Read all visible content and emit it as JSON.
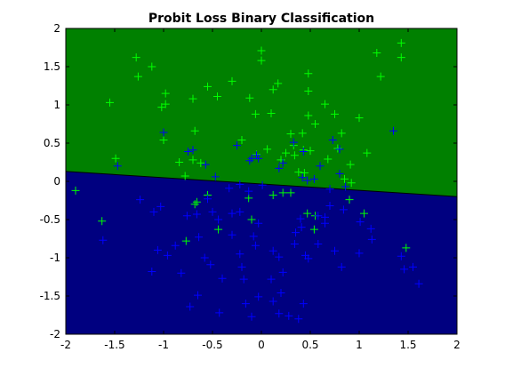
{
  "chart_data": {
    "type": "scatter",
    "title": "Probit Loss Binary Classification",
    "xlabel": "",
    "ylabel": "",
    "xlim": [
      -2,
      2
    ],
    "ylim": [
      -2,
      2
    ],
    "xticks": [
      -2,
      -1.5,
      -1,
      -0.5,
      0,
      0.5,
      1,
      1.5,
      2
    ],
    "yticks": [
      -2,
      -1.5,
      -1,
      -0.5,
      0,
      0.5,
      1,
      1.5,
      2
    ],
    "grid": false,
    "legend": "none",
    "decision_boundary": {
      "x": [
        -2,
        2
      ],
      "y": [
        0.13,
        -0.2
      ]
    },
    "regions": [
      {
        "side": "above",
        "color": "#008000"
      },
      {
        "side": "below",
        "color": "#000080"
      }
    ],
    "series": [
      {
        "marker": "plus",
        "color": "#00ff00",
        "points": [
          [
            1.43,
            1.81
          ],
          [
            0.0,
            1.71
          ],
          [
            -1.28,
            1.62
          ],
          [
            1.18,
            1.68
          ],
          [
            0.0,
            1.58
          ],
          [
            -1.12,
            1.5
          ],
          [
            1.43,
            1.62
          ],
          [
            -1.26,
            1.37
          ],
          [
            0.48,
            1.41
          ],
          [
            1.22,
            1.37
          ],
          [
            -0.3,
            1.31
          ],
          [
            0.17,
            1.28
          ],
          [
            -0.55,
            1.24
          ],
          [
            0.12,
            1.2
          ],
          [
            0.48,
            1.18
          ],
          [
            -0.98,
            1.15
          ],
          [
            -0.45,
            1.11
          ],
          [
            -1.55,
            1.03
          ],
          [
            -0.98,
            1.01
          ],
          [
            -0.7,
            1.08
          ],
          [
            0.65,
            1.01
          ],
          [
            -0.12,
            1.09
          ],
          [
            -1.02,
            0.97
          ],
          [
            0.1,
            0.89
          ],
          [
            -0.06,
            0.88
          ],
          [
            0.48,
            0.86
          ],
          [
            0.75,
            0.88
          ],
          [
            1.0,
            0.83
          ],
          [
            0.55,
            0.75
          ],
          [
            0.3,
            0.62
          ],
          [
            -0.68,
            0.66
          ],
          [
            0.42,
            0.63
          ],
          [
            0.82,
            0.63
          ],
          [
            -1.0,
            0.54
          ],
          [
            -0.2,
            0.54
          ],
          [
            0.33,
            0.47
          ],
          [
            0.78,
            0.43
          ],
          [
            0.43,
            0.41
          ],
          [
            0.06,
            0.42
          ],
          [
            0.5,
            0.4
          ],
          [
            -0.05,
            0.35
          ],
          [
            0.25,
            0.37
          ],
          [
            0.34,
            0.34
          ],
          [
            1.08,
            0.37
          ],
          [
            0.68,
            0.29
          ],
          [
            0.2,
            0.28
          ],
          [
            -0.84,
            0.25
          ],
          [
            -0.7,
            0.28
          ],
          [
            -0.62,
            0.24
          ],
          [
            0.91,
            0.22
          ],
          [
            0.38,
            0.12
          ],
          [
            -0.78,
            0.07
          ],
          [
            -1.49,
            0.3
          ],
          [
            0.44,
            0.11
          ],
          [
            0.85,
            0.03
          ],
          [
            0.92,
            -0.02
          ],
          [
            0.22,
            -0.15
          ],
          [
            0.12,
            -0.18
          ],
          [
            0.3,
            -0.15
          ],
          [
            -0.55,
            -0.18
          ],
          [
            -0.66,
            -0.27
          ],
          [
            -0.13,
            -0.22
          ],
          [
            -0.1,
            -0.5
          ],
          [
            0.9,
            -0.24
          ],
          [
            -1.9,
            -0.12
          ],
          [
            -0.68,
            -0.3
          ],
          [
            0.47,
            -0.42
          ],
          [
            0.55,
            -0.45
          ],
          [
            -1.63,
            -0.52
          ],
          [
            1.05,
            -0.42
          ],
          [
            0.54,
            -0.63
          ],
          [
            -0.44,
            -0.63
          ],
          [
            -0.77,
            -0.78
          ],
          [
            1.48,
            -0.87
          ]
        ]
      },
      {
        "marker": "plus",
        "color": "#0000ff",
        "points": [
          [
            1.35,
            0.66
          ],
          [
            -1.0,
            0.64
          ],
          [
            0.73,
            0.54
          ],
          [
            0.33,
            0.51
          ],
          [
            -0.25,
            0.47
          ],
          [
            -0.7,
            0.41
          ],
          [
            0.8,
            0.42
          ],
          [
            -0.75,
            0.39
          ],
          [
            0.43,
            0.39
          ],
          [
            -0.05,
            0.34
          ],
          [
            -0.1,
            0.3
          ],
          [
            -0.12,
            0.27
          ],
          [
            -0.03,
            0.3
          ],
          [
            0.6,
            0.2
          ],
          [
            0.22,
            0.24
          ],
          [
            0.18,
            0.17
          ],
          [
            -1.47,
            0.2
          ],
          [
            -0.57,
            0.22
          ],
          [
            0.42,
            0.05
          ],
          [
            0.47,
            0.01
          ],
          [
            0.8,
            0.1
          ],
          [
            0.54,
            0.03
          ],
          [
            -0.47,
            0.06
          ],
          [
            0.86,
            -0.07
          ],
          [
            -0.13,
            -0.13
          ],
          [
            0.7,
            -0.1
          ],
          [
            -0.33,
            -0.09
          ],
          [
            -0.22,
            -0.04
          ],
          [
            0.01,
            -0.05
          ],
          [
            -0.55,
            -0.23
          ],
          [
            -0.22,
            -0.4
          ],
          [
            -0.3,
            -0.42
          ],
          [
            -1.03,
            -0.33
          ],
          [
            -0.5,
            -0.4
          ],
          [
            -0.66,
            -0.43
          ],
          [
            -0.76,
            -0.45
          ],
          [
            -0.44,
            -0.5
          ],
          [
            0.4,
            -0.49
          ],
          [
            0.65,
            -0.47
          ],
          [
            0.7,
            -0.32
          ],
          [
            -1.24,
            -0.24
          ],
          [
            0.84,
            -0.37
          ],
          [
            -1.1,
            -0.4
          ],
          [
            1.01,
            -0.53
          ],
          [
            0.65,
            -0.55
          ],
          [
            -0.03,
            -0.55
          ],
          [
            0.58,
            -0.45
          ],
          [
            -0.3,
            -0.7
          ],
          [
            -0.08,
            -0.72
          ],
          [
            -0.06,
            -0.84
          ],
          [
            0.58,
            -0.82
          ],
          [
            -0.64,
            -0.73
          ],
          [
            0.34,
            -0.82
          ],
          [
            -0.88,
            -0.84
          ],
          [
            0.41,
            -0.6
          ],
          [
            0.35,
            -0.67
          ],
          [
            -1.06,
            -0.9
          ],
          [
            -0.22,
            -0.95
          ],
          [
            0.45,
            -0.97
          ],
          [
            0.12,
            -0.91
          ],
          [
            0.75,
            -0.91
          ],
          [
            1.0,
            -0.94
          ],
          [
            1.13,
            -0.76
          ],
          [
            -0.96,
            -0.97
          ],
          [
            0.18,
            -0.99
          ],
          [
            1.12,
            -0.62
          ],
          [
            1.43,
            -0.98
          ],
          [
            -1.62,
            -0.77
          ],
          [
            -0.58,
            -1.0
          ],
          [
            0.48,
            -1.01
          ],
          [
            0.82,
            -1.12
          ],
          [
            1.46,
            -1.15
          ],
          [
            -1.12,
            -1.18
          ],
          [
            -0.2,
            -1.12
          ],
          [
            -0.52,
            -1.09
          ],
          [
            1.55,
            -1.12
          ],
          [
            -0.82,
            -1.2
          ],
          [
            0.22,
            -1.19
          ],
          [
            -0.4,
            -1.27
          ],
          [
            1.61,
            -1.34
          ],
          [
            -0.18,
            -1.28
          ],
          [
            0.1,
            -1.28
          ],
          [
            -0.65,
            -1.49
          ],
          [
            0.2,
            -1.46
          ],
          [
            -0.03,
            -1.51
          ],
          [
            0.12,
            -1.57
          ],
          [
            -0.73,
            -1.64
          ],
          [
            -0.16,
            -1.6
          ],
          [
            0.28,
            -1.76
          ],
          [
            0.38,
            -1.8
          ],
          [
            0.18,
            -1.73
          ],
          [
            -0.43,
            -1.72
          ],
          [
            0.43,
            -1.6
          ],
          [
            -0.1,
            -1.77
          ]
        ]
      }
    ]
  }
}
